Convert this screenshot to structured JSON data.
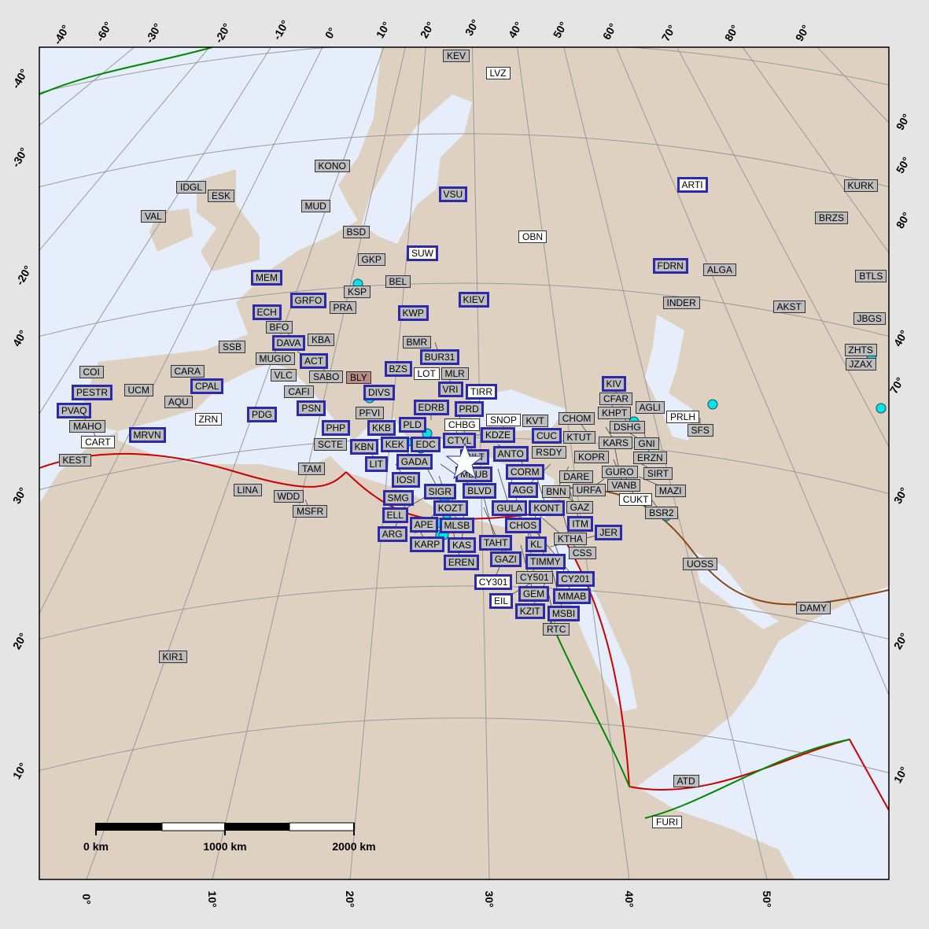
{
  "colors": {
    "ocean": "#e6eefc",
    "land": "#dfd1c2",
    "background": "#e5e5e5",
    "station_highlight": "#2a2aaa",
    "event": "#00e5e5",
    "plate_ridge": "#cc0000",
    "plate_transform": "#008800",
    "graticule": "#999999",
    "borders": "#ffffff"
  },
  "epicenter": {
    "icon": "star-icon",
    "color": "#ffffff"
  },
  "axis_labels": {
    "top": [
      "-40°",
      "-60°",
      "-30°",
      "-20°",
      "-10°",
      "0°",
      "10°",
      "20°",
      "30°",
      "40°",
      "50°",
      "60°",
      "70°",
      "80°",
      "90°"
    ],
    "left": [
      "-40°",
      "-30°",
      "-20°",
      "40°",
      "30°",
      "20°",
      "10°"
    ],
    "right": [
      "90°",
      "50°",
      "80°",
      "40°",
      "70°",
      "30°",
      "20°",
      "10°"
    ],
    "bottom": [
      "0°",
      "10°",
      "20°",
      "30°",
      "40°",
      "50°"
    ]
  },
  "scale_bar": {
    "labels": [
      "0 km",
      "1000 km",
      "2000 km"
    ]
  },
  "stations": [
    {
      "name": "KEV",
      "style": "g"
    },
    {
      "name": "LVZ",
      "style": "w"
    },
    {
      "name": "KONO",
      "style": "g"
    },
    {
      "name": "IDGL",
      "style": "g"
    },
    {
      "name": "ESK",
      "style": "g"
    },
    {
      "name": "VSU",
      "style": "b"
    },
    {
      "name": "ARTI",
      "style": "bw"
    },
    {
      "name": "KURK",
      "style": "g"
    },
    {
      "name": "VAL",
      "style": "g"
    },
    {
      "name": "MUD",
      "style": "g"
    },
    {
      "name": "BRZS",
      "style": "g"
    },
    {
      "name": "BSD",
      "style": "g"
    },
    {
      "name": "OBN",
      "style": "w"
    },
    {
      "name": "SUW",
      "style": "bw"
    },
    {
      "name": "GKP",
      "style": "g"
    },
    {
      "name": "FDRN",
      "style": "b"
    },
    {
      "name": "ALGA",
      "style": "g"
    },
    {
      "name": "BTLS",
      "style": "g"
    },
    {
      "name": "MEM",
      "style": "b"
    },
    {
      "name": "BEL",
      "style": "g"
    },
    {
      "name": "KSP",
      "style": "g"
    },
    {
      "name": "GRFO",
      "style": "b"
    },
    {
      "name": "PRA",
      "style": "g"
    },
    {
      "name": "KIEV",
      "style": "b"
    },
    {
      "name": "INDER",
      "style": "g"
    },
    {
      "name": "AKST",
      "style": "g"
    },
    {
      "name": "ECH",
      "style": "b"
    },
    {
      "name": "BFO",
      "style": "g"
    },
    {
      "name": "KWP",
      "style": "b"
    },
    {
      "name": "JBGS",
      "style": "g"
    },
    {
      "name": "DAVA",
      "style": "b"
    },
    {
      "name": "KBA",
      "style": "g"
    },
    {
      "name": "SSB",
      "style": "g"
    },
    {
      "name": "MUGIO",
      "style": "g"
    },
    {
      "name": "BMR",
      "style": "g"
    },
    {
      "name": "BUR31",
      "style": "b"
    },
    {
      "name": "ZHTS",
      "style": "g"
    },
    {
      "name": "ACT",
      "style": "b"
    },
    {
      "name": "SABO",
      "style": "g"
    },
    {
      "name": "JZAX",
      "style": "g"
    },
    {
      "name": "COI",
      "style": "g"
    },
    {
      "name": "CARA",
      "style": "g"
    },
    {
      "name": "VLC",
      "style": "g"
    },
    {
      "name": "BZS",
      "style": "b"
    },
    {
      "name": "LOT",
      "style": "w"
    },
    {
      "name": "MLR",
      "style": "g"
    },
    {
      "name": "VRI",
      "style": "b"
    },
    {
      "name": "BLY",
      "style": "r"
    },
    {
      "name": "CPAL",
      "style": "b"
    },
    {
      "name": "UCM",
      "style": "g"
    },
    {
      "name": "CAFI",
      "style": "g"
    },
    {
      "name": "DIVS",
      "style": "b"
    },
    {
      "name": "TIRR",
      "style": "bw"
    },
    {
      "name": "PESTR",
      "style": "b"
    },
    {
      "name": "KIV",
      "style": "b"
    },
    {
      "name": "CFAR",
      "style": "g"
    },
    {
      "name": "AQU",
      "style": "g"
    },
    {
      "name": "PSN",
      "style": "b"
    },
    {
      "name": "PRD",
      "style": "b"
    },
    {
      "name": "CHBG",
      "style": "w"
    },
    {
      "name": "KHPT",
      "style": "g"
    },
    {
      "name": "DSHG",
      "style": "g"
    },
    {
      "name": "AGLI",
      "style": "g"
    },
    {
      "name": "PDG",
      "style": "b"
    },
    {
      "name": "PFVI",
      "style": "g"
    },
    {
      "name": "PVAQ",
      "style": "b"
    },
    {
      "name": "MAHO",
      "style": "g"
    },
    {
      "name": "ZRN",
      "style": "w"
    },
    {
      "name": "PRLH",
      "style": "w"
    },
    {
      "name": "SFS",
      "style": "g"
    },
    {
      "name": "CART",
      "style": "w"
    },
    {
      "name": "MRVN",
      "style": "b"
    },
    {
      "name": "PHP",
      "style": "b"
    },
    {
      "name": "KKB",
      "style": "b"
    },
    {
      "name": "PLD",
      "style": "b"
    },
    {
      "name": "EDRB",
      "style": "b"
    },
    {
      "name": "CTYL",
      "style": "b"
    },
    {
      "name": "SILT",
      "style": "b"
    },
    {
      "name": "KDZE",
      "style": "b"
    },
    {
      "name": "SNOP",
      "style": "w"
    },
    {
      "name": "KVT",
      "style": "g"
    },
    {
      "name": "CUC",
      "style": "b"
    },
    {
      "name": "SCTE",
      "style": "g"
    },
    {
      "name": "KBN",
      "style": "b"
    },
    {
      "name": "KEK",
      "style": "b"
    },
    {
      "name": "LIT",
      "style": "b"
    },
    {
      "name": "GADA",
      "style": "b"
    },
    {
      "name": "EDC",
      "style": "b"
    },
    {
      "name": "MDUB",
      "style": "b"
    },
    {
      "name": "ANTO",
      "style": "b"
    },
    {
      "name": "CORM",
      "style": "b"
    },
    {
      "name": "RSDY",
      "style": "g"
    },
    {
      "name": "KTUT",
      "style": "g"
    },
    {
      "name": "CHOM",
      "style": "g"
    },
    {
      "name": "KARS",
      "style": "g"
    },
    {
      "name": "GNI",
      "style": "g"
    },
    {
      "name": "ERZN",
      "style": "g"
    },
    {
      "name": "KOPR",
      "style": "g"
    },
    {
      "name": "GURO",
      "style": "g"
    },
    {
      "name": "VANB",
      "style": "g"
    },
    {
      "name": "SIRT",
      "style": "g"
    },
    {
      "name": "CUKT",
      "style": "w"
    },
    {
      "name": "MAZI",
      "style": "g"
    },
    {
      "name": "URFA",
      "style": "g"
    },
    {
      "name": "DARE",
      "style": "g"
    },
    {
      "name": "BNN",
      "style": "g"
    },
    {
      "name": "AGG",
      "style": "b"
    },
    {
      "name": "IOSI",
      "style": "b"
    },
    {
      "name": "SIGR",
      "style": "b"
    },
    {
      "name": "BLVD",
      "style": "b"
    },
    {
      "name": "GULA",
      "style": "b"
    },
    {
      "name": "KONT",
      "style": "b"
    },
    {
      "name": "CHOS",
      "style": "b"
    },
    {
      "name": "KOZT",
      "style": "b"
    },
    {
      "name": "GAZ",
      "style": "g"
    },
    {
      "name": "ITM",
      "style": "b"
    },
    {
      "name": "SMG",
      "style": "b"
    },
    {
      "name": "MLSB",
      "style": "b"
    },
    {
      "name": "APE",
      "style": "b"
    },
    {
      "name": "ELL",
      "style": "b"
    },
    {
      "name": "TAHT",
      "style": "b"
    },
    {
      "name": "KTHA",
      "style": "g"
    },
    {
      "name": "ARG",
      "style": "b"
    },
    {
      "name": "KAS",
      "style": "b"
    },
    {
      "name": "GAZI",
      "style": "b"
    },
    {
      "name": "KL",
      "style": "b"
    },
    {
      "name": "TIMMY",
      "style": "b"
    },
    {
      "name": "KARP",
      "style": "b"
    },
    {
      "name": "EREN",
      "style": "b"
    },
    {
      "name": "CSS",
      "style": "g"
    },
    {
      "name": "CY501",
      "style": "g"
    },
    {
      "name": "CY201",
      "style": "b"
    },
    {
      "name": "CY301",
      "style": "bw"
    },
    {
      "name": "GEM",
      "style": "b"
    },
    {
      "name": "MMAB",
      "style": "b"
    },
    {
      "name": "JER",
      "style": "b"
    },
    {
      "name": "MSBI",
      "style": "b"
    },
    {
      "name": "KZIT",
      "style": "b"
    },
    {
      "name": "EIL",
      "style": "bw"
    },
    {
      "name": "RTC",
      "style": "g"
    },
    {
      "name": "KEST",
      "style": "g"
    },
    {
      "name": "LINA",
      "style": "g"
    },
    {
      "name": "WDD",
      "style": "g"
    },
    {
      "name": "MSFR",
      "style": "g"
    },
    {
      "name": "TAM",
      "style": "g"
    },
    {
      "name": "KIR1",
      "style": "g"
    },
    {
      "name": "BSR2",
      "style": "g"
    },
    {
      "name": "UOSS",
      "style": "g"
    },
    {
      "name": "DAMY",
      "style": "g"
    },
    {
      "name": "ATD",
      "style": "g"
    },
    {
      "name": "FURI",
      "style": "w"
    }
  ]
}
